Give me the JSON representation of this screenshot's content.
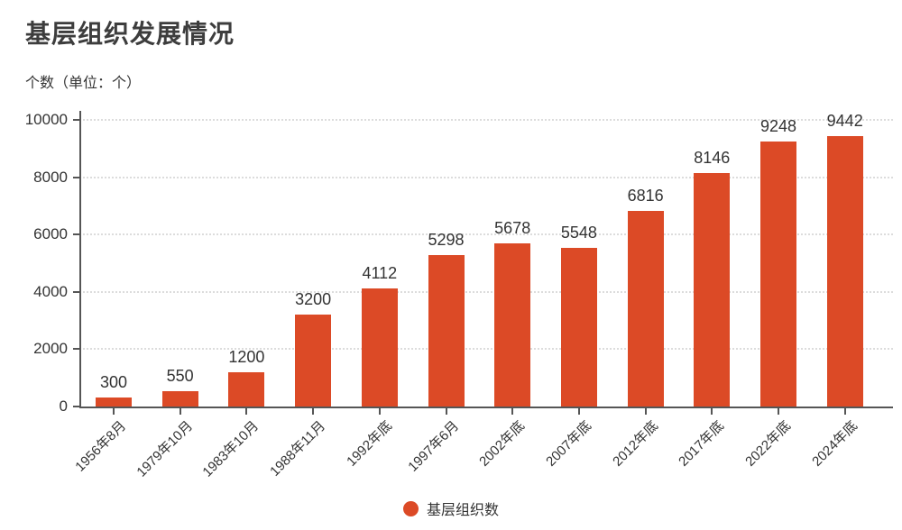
{
  "header": {
    "title": "基层组织发展情况",
    "unit_label": "个数（单位：个）"
  },
  "legend": {
    "label": "基层组织数"
  },
  "colors": {
    "bar": "#DC4A26",
    "axis": "#555555",
    "grid": "#DCDCDC",
    "title_text": "#3D3D3D",
    "text": "#333333",
    "background": "#FFFFFF"
  },
  "chart_data": {
    "type": "bar",
    "title": "基层组织发展情况",
    "ylabel": "个数（单位：个）",
    "xlabel": "",
    "categories": [
      "1956年8月",
      "1979年10月",
      "1983年10月",
      "1988年11月",
      "1992年底",
      "1997年6月",
      "2002年底",
      "2007年底",
      "2012年底",
      "2017年底",
      "2022年底",
      "2024年底"
    ],
    "series": [
      {
        "name": "基层组织数",
        "values": [
          300,
          550,
          1200,
          3200,
          4112,
          5298,
          5678,
          5548,
          6816,
          8146,
          9248,
          9442
        ]
      }
    ],
    "ylim": [
      0,
      10000
    ],
    "y_ticks": [
      0,
      2000,
      4000,
      6000,
      8000,
      10000
    ],
    "grid": "horizontal-dotted",
    "value_labels": true,
    "legend_position": "bottom-center",
    "bar_color": "#DC4A26"
  }
}
